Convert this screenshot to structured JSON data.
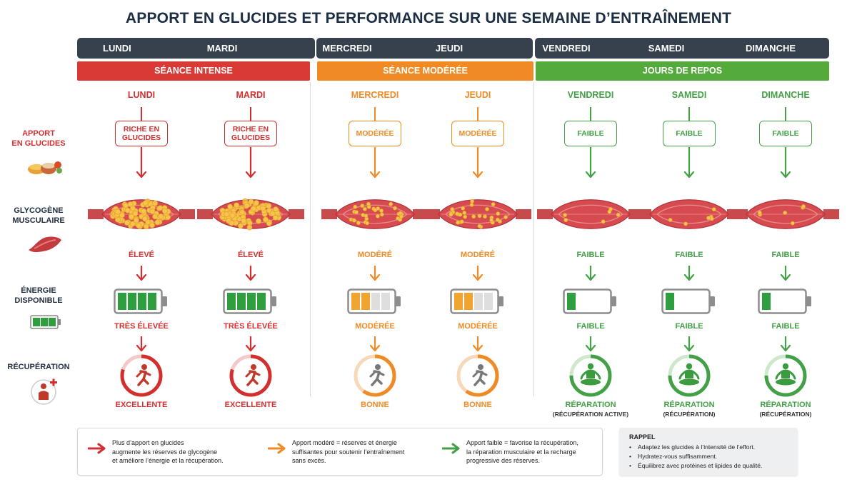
{
  "title": "APPORT EN GLUCIDES ET PERFORMANCE SUR UNE SEMAINE D’ENTRAÎNEMENT",
  "colors": {
    "red": "#d32f2f",
    "orange": "#f08a24",
    "green": "#43a047",
    "dark": "#37414e"
  },
  "categories": [
    {
      "label": "SÉANCE INTENSE",
      "color": "#d93a36"
    },
    {
      "label": "SÉANCE MODÉRÉE",
      "color": "#f08a24"
    },
    {
      "label": "JOURS DE REPOS",
      "color": "#55aa3c"
    }
  ],
  "row_labels": {
    "intake": "APPORT\nEN GLUCIDES",
    "glycogen": "GLYCOGÈNE\nMUSCULAIRE",
    "energy": "ÉNERGIE\nDISPONIBLE",
    "recovery": "RÉCUPÉRATION"
  },
  "days": [
    {
      "name": "LUNDI",
      "intake": "RICHE EN\nGLUCIDES",
      "glycogen": "ÉLEVÉ",
      "battery_level": 1.0,
      "energy": "TRÈS ÉLEVÉE",
      "recovery": "EXCELLENTE",
      "recovery_sub": "",
      "recovery_icon": "runner-icon",
      "color": "#d32f2f"
    },
    {
      "name": "MARDI",
      "intake": "RICHE EN\nGLUCIDES",
      "glycogen": "ÉLEVÉ",
      "battery_level": 1.0,
      "energy": "TRÈS ÉLEVÉE",
      "recovery": "EXCELLENTE",
      "recovery_sub": "",
      "recovery_icon": "runner-icon",
      "color": "#d32f2f"
    },
    {
      "name": "MERCREDI",
      "intake": "MODÉRÉE",
      "glycogen": "MODÉRÉ",
      "battery_level": 0.5,
      "energy": "MODÉRÉE",
      "recovery": "BONNE",
      "recovery_sub": "",
      "recovery_icon": "runner-icon",
      "color": "#f08a24"
    },
    {
      "name": "JEUDI",
      "intake": "MODÉRÉE",
      "glycogen": "MODÉRÉ",
      "battery_level": 0.5,
      "energy": "MODÉRÉE",
      "recovery": "BONNE",
      "recovery_sub": "",
      "recovery_icon": "runner-icon",
      "color": "#f08a24"
    },
    {
      "name": "VENDREDI",
      "intake": "FAIBLE",
      "glycogen": "FAIBLE",
      "battery_level": 0.25,
      "energy": "FAIBLE",
      "recovery": "RÉPARATION",
      "recovery_sub": "(RÉCUPÉRATION ACTIVE)",
      "recovery_icon": "meditation-icon",
      "color": "#43a047"
    },
    {
      "name": "SAMEDI",
      "intake": "FAIBLE",
      "glycogen": "FAIBLE",
      "battery_level": 0.25,
      "energy": "FAIBLE",
      "recovery": "RÉPARATION",
      "recovery_sub": "(RÉCUPÉRATION)",
      "recovery_icon": "meditation-icon",
      "color": "#43a047"
    },
    {
      "name": "DIMANCHE",
      "intake": "FAIBLE",
      "glycogen": "FAIBLE",
      "battery_level": 0.25,
      "energy": "FAIBLE",
      "recovery": "RÉPARATION",
      "recovery_sub": "(RÉCUPÉRATION)",
      "recovery_icon": "meditation-icon",
      "color": "#43a047"
    }
  ],
  "legend": [
    {
      "color": "#d32f2f",
      "text": "Plus d’apport en glucides\naugmente les réserves de glycogène\net améliore l’énergie et la récupération."
    },
    {
      "color": "#f08a24",
      "text": "Apport modéré = réserves et énergie\nsuffisantes pour soutenir l’entraînement\nsans excès."
    },
    {
      "color": "#43a047",
      "text": "Apport faible = favorise la récupération,\nla réparation musculaire et la recharge\nprogressive des réserves."
    }
  ],
  "rappel": {
    "title": "RAPPEL",
    "items": [
      "Adaptez les glucides à l’intensité de l’effort.",
      "Hydratez-vous suffisamment.",
      "Équilibrez avec protéines et lipides de qualité."
    ]
  }
}
